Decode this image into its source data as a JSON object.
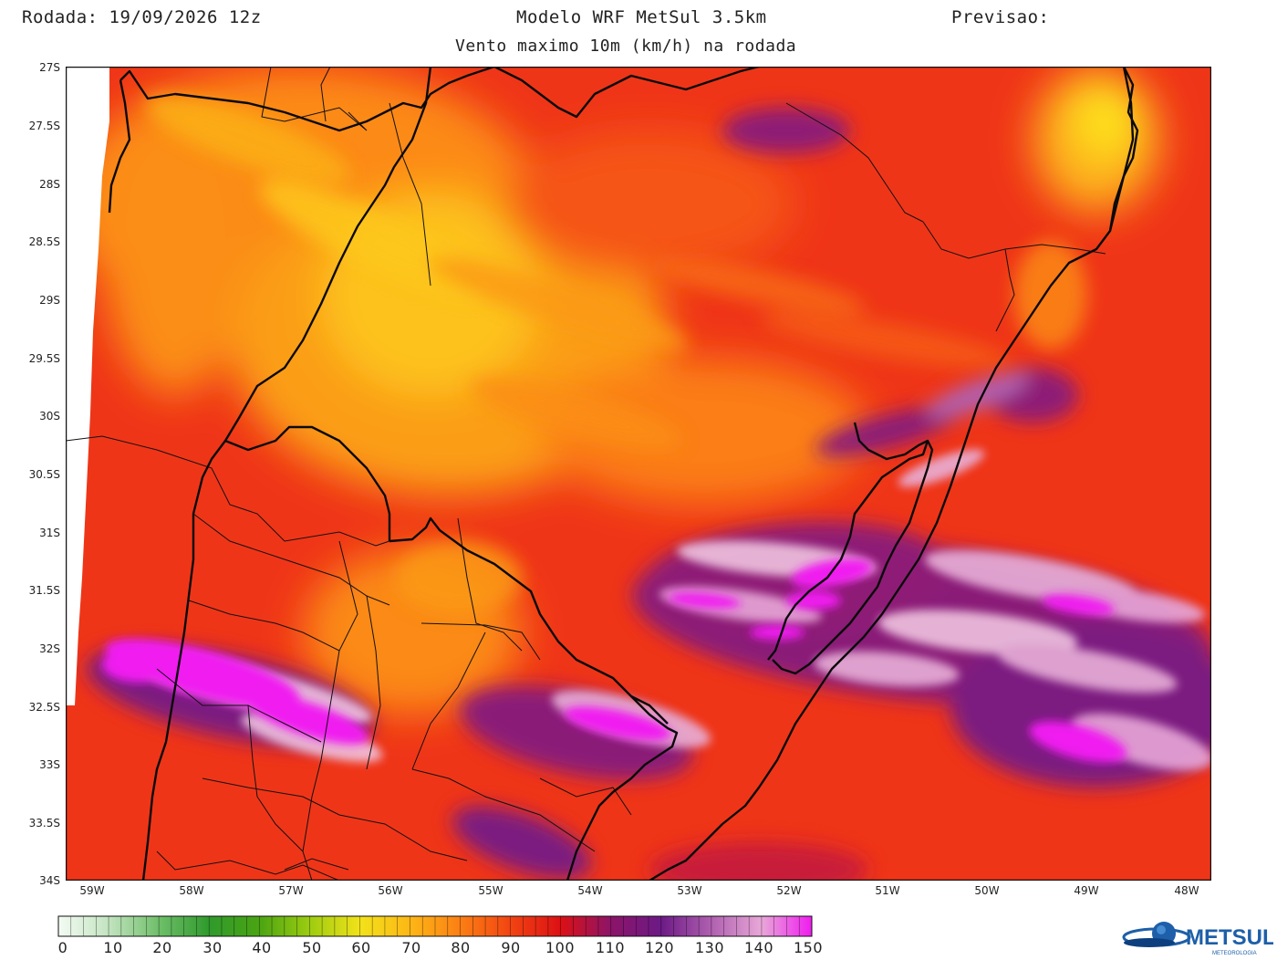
{
  "header": {
    "run_label": "Rodada: 19/09/2026 12z",
    "model_label": "Modelo WRF MetSul 3.5km",
    "forecast_label": "Previsao:",
    "subtitle": "Vento maximo 10m (km/h) na rodada"
  },
  "map": {
    "latitude_ticks": [
      "27S",
      "27.5S",
      "28S",
      "28.5S",
      "29S",
      "29.5S",
      "30S",
      "30.5S",
      "31S",
      "31.5S",
      "32S",
      "32.5S",
      "33S",
      "33.5S",
      "34S"
    ],
    "longitude_ticks": [
      "59W",
      "58W",
      "57W",
      "56W",
      "55W",
      "54W",
      "53W",
      "52W",
      "51W",
      "50W",
      "49W",
      "48W"
    ],
    "lat_range": [
      -34,
      -27
    ],
    "lon_range": [
      -59.25,
      -47.8
    ],
    "region": "Rio Grande do Sul, Brazil / Uruguay",
    "field": "maximum 10 m wind speed (km/h)"
  },
  "colorbar": {
    "labels": [
      "0",
      "10",
      "20",
      "30",
      "40",
      "50",
      "60",
      "70",
      "80",
      "90",
      "100",
      "110",
      "120",
      "130",
      "140",
      "150"
    ],
    "values": [
      0,
      10,
      20,
      30,
      40,
      50,
      60,
      70,
      80,
      90,
      100,
      110,
      120,
      130,
      140,
      150
    ],
    "colors": [
      "#f4fbf4",
      "#c3e4c0",
      "#6fbf6a",
      "#2f9a2c",
      "#4aa412",
      "#9ccc10",
      "#f2e21a",
      "#fdb716",
      "#fb7f14",
      "#f24412",
      "#dc1014",
      "#8c1468",
      "#6c1a86",
      "#b060b0",
      "#e8a8d8",
      "#f01cf0"
    ]
  },
  "logo": {
    "name": "METSUL",
    "tagline": "METEOROLOGIA",
    "accent": "#1d5fa8"
  }
}
